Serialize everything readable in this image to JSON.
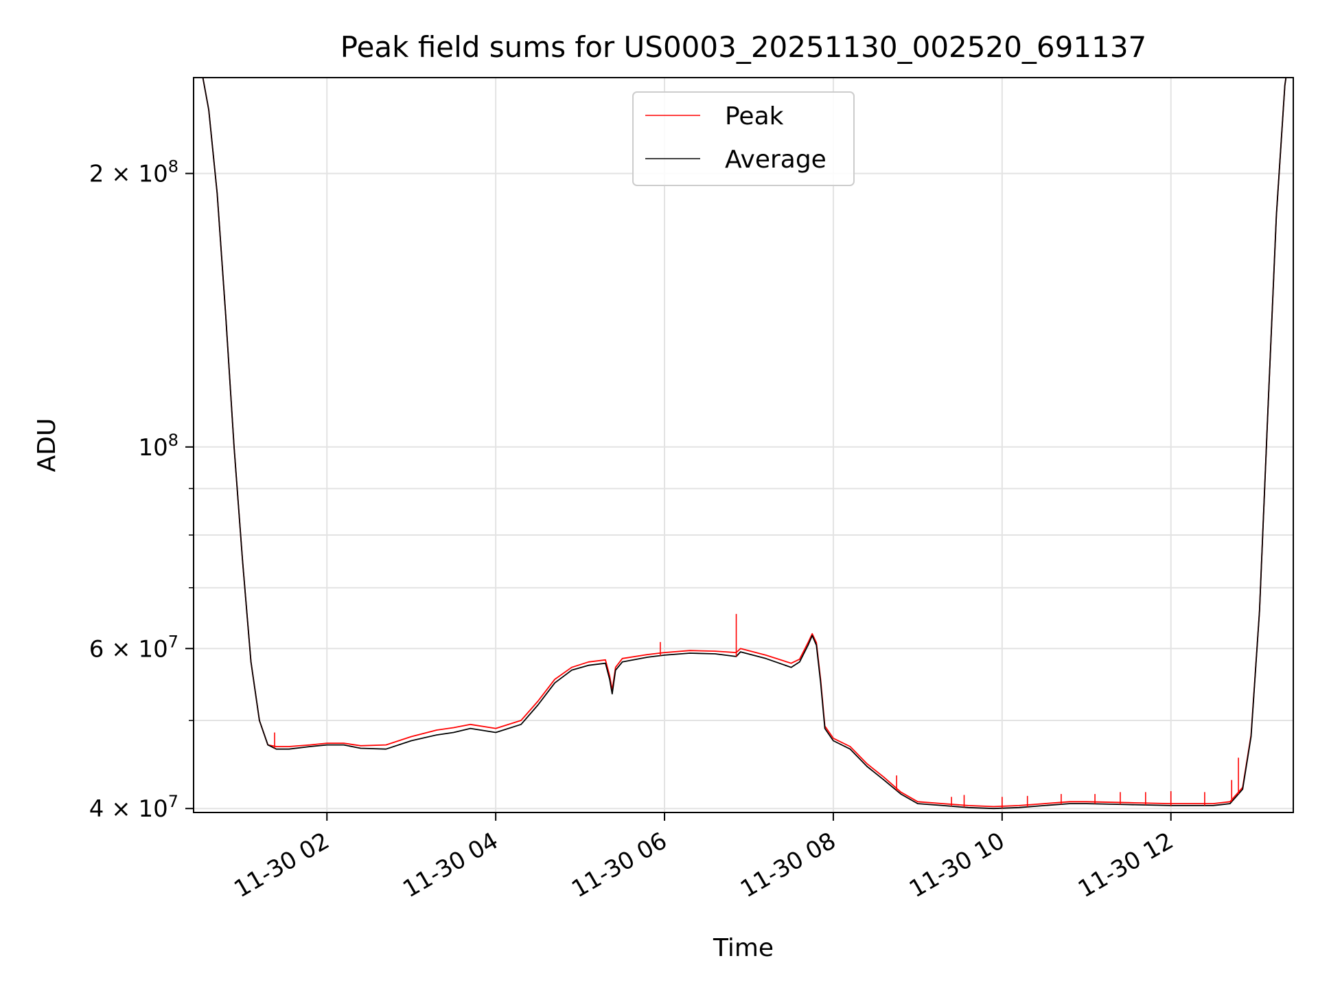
{
  "chart_data": {
    "type": "line",
    "title": "Peak field sums for US0003_20251130_002520_691137",
    "xlabel": "Time",
    "ylabel": "ADU",
    "yscale": "log",
    "ylim": [
      39600000,
      255000000
    ],
    "xlim_hours": [
      0.42,
      13.45
    ],
    "grid": true,
    "legend_position": "upper center",
    "legend": [
      {
        "label": "Peak",
        "color": "#ff0000"
      },
      {
        "label": "Average",
        "color": "#000000"
      }
    ],
    "x_ticks": [
      {
        "hour": 2,
        "label": "11-30 02"
      },
      {
        "hour": 4,
        "label": "11-30 04"
      },
      {
        "hour": 6,
        "label": "11-30 06"
      },
      {
        "hour": 8,
        "label": "11-30 08"
      },
      {
        "hour": 10,
        "label": "11-30 10"
      },
      {
        "hour": 12,
        "label": "11-30 12"
      }
    ],
    "y_major_ticks": [
      {
        "value": 40000000,
        "mant": "4",
        "exp": "7"
      },
      {
        "value": 60000000,
        "mant": "6",
        "exp": "7"
      },
      {
        "value": 100000000,
        "mant": "10",
        "exp": "8"
      },
      {
        "value": 200000000,
        "mant": "2",
        "exp": "8"
      }
    ],
    "y_times_symbol": "×",
    "y_minor_ticks": [
      50000000,
      70000000,
      80000000,
      90000000
    ],
    "series": [
      {
        "name": "Average",
        "color": "#000000",
        "x_hours": [
          0.42,
          0.6,
          0.7,
          0.8,
          0.9,
          1.0,
          1.1,
          1.2,
          1.3,
          1.4,
          1.55,
          1.8,
          2.0,
          2.2,
          2.4,
          2.7,
          3.0,
          3.3,
          3.5,
          3.7,
          4.0,
          4.3,
          4.5,
          4.7,
          4.9,
          5.1,
          5.3,
          5.35,
          5.38,
          5.42,
          5.5,
          5.8,
          6.0,
          6.3,
          6.6,
          6.85,
          6.9,
          7.2,
          7.5,
          7.6,
          7.7,
          7.75,
          7.8,
          7.85,
          7.9,
          8.0,
          8.2,
          8.4,
          8.6,
          8.8,
          9.0,
          9.3,
          9.6,
          9.9,
          10.2,
          10.5,
          10.8,
          11.0,
          11.5,
          12.0,
          12.5,
          12.7,
          12.85,
          12.95,
          13.05,
          13.15,
          13.25,
          13.35,
          13.45
        ],
        "values": [
          290000000,
          235000000,
          190000000,
          140000000,
          100000000,
          75000000,
          58000000,
          50000000,
          47000000,
          46500000,
          46500000,
          46800000,
          47000000,
          47000000,
          46600000,
          46500000,
          47500000,
          48200000,
          48500000,
          49000000,
          48500000,
          49500000,
          52000000,
          55000000,
          56800000,
          57500000,
          57800000,
          55500000,
          53500000,
          56800000,
          58000000,
          58700000,
          59000000,
          59300000,
          59200000,
          58800000,
          59500000,
          58500000,
          57200000,
          58000000,
          60500000,
          62000000,
          60500000,
          55000000,
          49000000,
          47500000,
          46500000,
          44500000,
          43000000,
          41500000,
          40500000,
          40300000,
          40100000,
          40000000,
          40100000,
          40300000,
          40500000,
          40500000,
          40400000,
          40300000,
          40300000,
          40500000,
          42000000,
          48000000,
          66000000,
          110000000,
          180000000,
          250000000,
          290000000
        ]
      },
      {
        "name": "Peak",
        "color": "#ff0000",
        "x_hours": [
          0.42,
          0.6,
          0.7,
          0.8,
          0.9,
          1.0,
          1.1,
          1.2,
          1.3,
          1.4,
          1.55,
          1.8,
          2.0,
          2.2,
          2.4,
          2.7,
          3.0,
          3.3,
          3.5,
          3.7,
          4.0,
          4.3,
          4.5,
          4.7,
          4.9,
          5.1,
          5.3,
          5.35,
          5.38,
          5.42,
          5.5,
          5.8,
          6.0,
          6.3,
          6.6,
          6.85,
          6.9,
          7.2,
          7.5,
          7.6,
          7.7,
          7.75,
          7.8,
          7.85,
          7.9,
          8.0,
          8.2,
          8.4,
          8.6,
          8.8,
          9.0,
          9.3,
          9.6,
          9.9,
          10.2,
          10.5,
          10.8,
          11.0,
          11.5,
          12.0,
          12.5,
          12.7,
          12.85,
          12.95,
          13.05,
          13.15,
          13.25,
          13.35,
          13.45
        ],
        "values": [
          290000000,
          235000000,
          190000000,
          140000000,
          100000000,
          75000000,
          58000000,
          50000000,
          47000000,
          46800000,
          46800000,
          47000000,
          47200000,
          47200000,
          46900000,
          47000000,
          48000000,
          48800000,
          49100000,
          49500000,
          49000000,
          50000000,
          52500000,
          55500000,
          57200000,
          58000000,
          58300000,
          56000000,
          54000000,
          57200000,
          58500000,
          59100000,
          59400000,
          59700000,
          59600000,
          59400000,
          60000000,
          59000000,
          57800000,
          58400000,
          60900000,
          62300000,
          60900000,
          55400000,
          49300000,
          47800000,
          46800000,
          44800000,
          43300000,
          41700000,
          40700000,
          40500000,
          40300000,
          40200000,
          40300000,
          40500000,
          40700000,
          40700000,
          40600000,
          40500000,
          40500000,
          40700000,
          42200000,
          48200000,
          66000000,
          110000000,
          180000000,
          250000000,
          290000000
        ]
      }
    ],
    "peak_spikes": [
      {
        "hour": 1.38,
        "value": 48500000
      },
      {
        "hour": 5.95,
        "value": 61000000
      },
      {
        "hour": 6.85,
        "value": 65500000
      },
      {
        "hour": 8.75,
        "value": 43500000
      },
      {
        "hour": 9.4,
        "value": 41200000
      },
      {
        "hour": 9.55,
        "value": 41400000
      },
      {
        "hour": 10.0,
        "value": 41200000
      },
      {
        "hour": 10.3,
        "value": 41300000
      },
      {
        "hour": 10.7,
        "value": 41500000
      },
      {
        "hour": 11.1,
        "value": 41500000
      },
      {
        "hour": 11.4,
        "value": 41700000
      },
      {
        "hour": 11.7,
        "value": 41700000
      },
      {
        "hour": 12.0,
        "value": 41800000
      },
      {
        "hour": 12.4,
        "value": 41700000
      },
      {
        "hour": 12.72,
        "value": 43000000
      },
      {
        "hour": 12.8,
        "value": 45500000
      }
    ]
  }
}
